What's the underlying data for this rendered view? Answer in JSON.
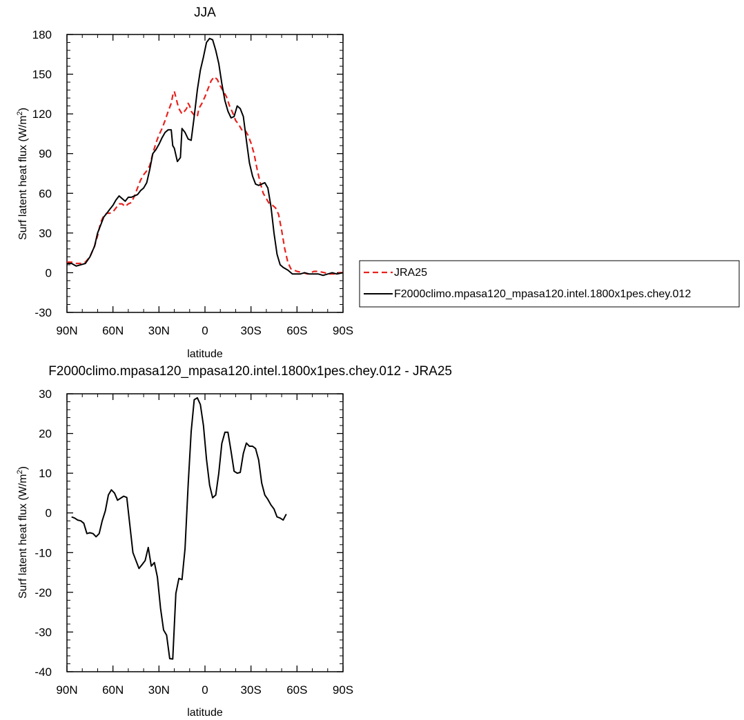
{
  "chart_data": [
    {
      "type": "line",
      "title": "JJA",
      "xlabel": "latitude",
      "ylabel_main": "Surf latent heat flux (W/m",
      "ylabel_sup": "2",
      "ylabel_tail": ")",
      "xlim": [
        -90,
        90
      ],
      "ylim": [
        -30,
        180
      ],
      "xticks": [
        {
          "value": -90,
          "label": "90N"
        },
        {
          "value": -60,
          "label": "60N"
        },
        {
          "value": -30,
          "label": "30N"
        },
        {
          "value": 0,
          "label": "0"
        },
        {
          "value": 30,
          "label": "30S"
        },
        {
          "value": 60,
          "label": "60S"
        },
        {
          "value": 90,
          "label": "90S"
        }
      ],
      "yticks": [
        -30,
        0,
        30,
        60,
        90,
        120,
        150,
        180
      ],
      "legend_position": "right",
      "series": [
        {
          "name": "JRA25",
          "color": "#e8221d",
          "dash": "dashed",
          "points": [
            [
              -90,
              8
            ],
            [
              -87,
              8
            ],
            [
              -84,
              7
            ],
            [
              -81,
              7
            ],
            [
              -78,
              8
            ],
            [
              -75,
              12
            ],
            [
              -72,
              20
            ],
            [
              -70,
              28
            ],
            [
              -68,
              38
            ],
            [
              -66,
              43
            ],
            [
              -64,
              45
            ],
            [
              -62,
              45
            ],
            [
              -60,
              46
            ],
            [
              -58,
              49
            ],
            [
              -56,
              52
            ],
            [
              -54,
              52
            ],
            [
              -52,
              50
            ],
            [
              -50,
              52
            ],
            [
              -48,
              53
            ],
            [
              -46,
              58
            ],
            [
              -44,
              64
            ],
            [
              -42,
              70
            ],
            [
              -40,
              74
            ],
            [
              -38,
              77
            ],
            [
              -36,
              81
            ],
            [
              -34,
              90
            ],
            [
              -32,
              98
            ],
            [
              -30,
              104
            ],
            [
              -28,
              109
            ],
            [
              -26,
              115
            ],
            [
              -24,
              122
            ],
            [
              -22,
              128
            ],
            [
              -21,
              134
            ],
            [
              -20,
              137
            ],
            [
              -18,
              128
            ],
            [
              -17,
              124
            ],
            [
              -15,
              120
            ],
            [
              -14,
              121
            ],
            [
              -12,
              124
            ],
            [
              -11,
              128
            ],
            [
              -10,
              126
            ],
            [
              -9,
              122
            ],
            [
              -7,
              119
            ],
            [
              -5,
              118
            ],
            [
              -4,
              124
            ],
            [
              -2,
              128
            ],
            [
              0,
              133
            ],
            [
              2,
              139
            ],
            [
              4,
              145
            ],
            [
              6,
              148
            ],
            [
              8,
              146
            ],
            [
              10,
              141
            ],
            [
              12,
              137
            ],
            [
              14,
              133
            ],
            [
              16,
              126
            ],
            [
              18,
              121
            ],
            [
              20,
              115
            ],
            [
              22,
              112
            ],
            [
              24,
              108
            ],
            [
              26,
              108
            ],
            [
              28,
              104
            ],
            [
              30,
              98
            ],
            [
              32,
              90
            ],
            [
              34,
              78
            ],
            [
              36,
              68
            ],
            [
              38,
              60
            ],
            [
              40,
              56
            ],
            [
              42,
              52
            ],
            [
              44,
              51
            ],
            [
              46,
              49
            ],
            [
              48,
              44
            ],
            [
              50,
              32
            ],
            [
              52,
              18
            ],
            [
              54,
              8
            ],
            [
              56,
              3
            ],
            [
              60,
              1
            ],
            [
              64,
              0
            ],
            [
              67,
              -1
            ],
            [
              71,
              1
            ],
            [
              74,
              1
            ],
            [
              78,
              0
            ],
            [
              81,
              -1
            ],
            [
              84,
              -1
            ],
            [
              87,
              0
            ],
            [
              90,
              0
            ]
          ]
        },
        {
          "name": "F2000climo.mpasa120_mpasa120.intel.1800x1pes.chey.012",
          "color": "#000000",
          "dash": "solid",
          "points": [
            [
              -90,
              7
            ],
            [
              -87,
              7
            ],
            [
              -84,
              5
            ],
            [
              -81,
              6
            ],
            [
              -78,
              7
            ],
            [
              -75,
              12
            ],
            [
              -72,
              20
            ],
            [
              -70,
              30
            ],
            [
              -68,
              36
            ],
            [
              -66,
              42
            ],
            [
              -64,
              45
            ],
            [
              -62,
              48
            ],
            [
              -60,
              51
            ],
            [
              -58,
              55
            ],
            [
              -56,
              58
            ],
            [
              -54,
              56
            ],
            [
              -52,
              54
            ],
            [
              -50,
              57
            ],
            [
              -48,
              57
            ],
            [
              -46,
              58
            ],
            [
              -44,
              59
            ],
            [
              -42,
              62
            ],
            [
              -40,
              64
            ],
            [
              -38,
              68
            ],
            [
              -36,
              78
            ],
            [
              -34,
              90
            ],
            [
              -32,
              93
            ],
            [
              -30,
              97
            ],
            [
              -28,
              102
            ],
            [
              -26,
              106
            ],
            [
              -24,
              108
            ],
            [
              -22,
              108
            ],
            [
              -21,
              96
            ],
            [
              -20,
              94
            ],
            [
              -18,
              84
            ],
            [
              -16,
              87
            ],
            [
              -15,
              109
            ],
            [
              -13,
              106
            ],
            [
              -11,
              101
            ],
            [
              -9,
              100
            ],
            [
              -7,
              118
            ],
            [
              -5,
              138
            ],
            [
              -3,
              153
            ],
            [
              -1,
              163
            ],
            [
              1,
              174
            ],
            [
              3,
              177
            ],
            [
              5,
              176
            ],
            [
              7,
              168
            ],
            [
              9,
              158
            ],
            [
              11,
              143
            ],
            [
              13,
              130
            ],
            [
              15,
              122
            ],
            [
              17,
              117
            ],
            [
              19,
              118
            ],
            [
              21,
              126
            ],
            [
              23,
              124
            ],
            [
              25,
              118
            ],
            [
              27,
              100
            ],
            [
              29,
              83
            ],
            [
              31,
              73
            ],
            [
              33,
              67
            ],
            [
              35,
              66
            ],
            [
              37,
              67
            ],
            [
              39,
              68
            ],
            [
              41,
              64
            ],
            [
              43,
              50
            ],
            [
              45,
              30
            ],
            [
              47,
              14
            ],
            [
              49,
              6
            ],
            [
              51,
              4
            ],
            [
              54,
              2
            ],
            [
              57,
              -1
            ],
            [
              60,
              -1
            ],
            [
              62,
              -1
            ],
            [
              65,
              0
            ],
            [
              68,
              -1
            ],
            [
              71,
              -1
            ],
            [
              74,
              -1
            ],
            [
              77,
              -2
            ],
            [
              80,
              -1
            ],
            [
              83,
              0
            ],
            [
              86,
              -1
            ],
            [
              90,
              0
            ]
          ]
        }
      ]
    },
    {
      "type": "line",
      "title": "F2000climo.mpasa120_mpasa120.intel.1800x1pes.chey.012 - JRA25",
      "xlabel": "latitude",
      "ylabel_main": "Surf latent heat flux (W/m",
      "ylabel_sup": "2",
      "ylabel_tail": ")",
      "xlim": [
        -90,
        90
      ],
      "ylim": [
        -40,
        30
      ],
      "xticks": [
        {
          "value": -90,
          "label": "90N"
        },
        {
          "value": -60,
          "label": "60N"
        },
        {
          "value": -30,
          "label": "30N"
        },
        {
          "value": 0,
          "label": "0"
        },
        {
          "value": 30,
          "label": "30S"
        },
        {
          "value": 60,
          "label": "60S"
        },
        {
          "value": 90,
          "label": "90S"
        }
      ],
      "yticks": [
        -40,
        -30,
        -20,
        -10,
        0,
        10,
        20,
        30
      ],
      "series": [
        {
          "color": "#000000",
          "dash": "solid",
          "points": [
            [
              -87,
              -1
            ],
            [
              -85,
              -1.3
            ],
            [
              -83,
              -1.8
            ],
            [
              -81,
              -2
            ],
            [
              -79,
              -2.6
            ],
            [
              -77,
              -5.2
            ],
            [
              -75,
              -5
            ],
            [
              -73,
              -5.2
            ],
            [
              -71,
              -6
            ],
            [
              -69,
              -5.2
            ],
            [
              -67,
              -2
            ],
            [
              -65,
              0.5
            ],
            [
              -63,
              4.5
            ],
            [
              -61,
              5.8
            ],
            [
              -59,
              5
            ],
            [
              -57,
              3.2
            ],
            [
              -55,
              3.7
            ],
            [
              -53,
              4.2
            ],
            [
              -51,
              3.9
            ],
            [
              -49,
              -3
            ],
            [
              -47,
              -10
            ],
            [
              -45,
              -12
            ],
            [
              -43,
              -14
            ],
            [
              -41,
              -13
            ],
            [
              -39,
              -12
            ],
            [
              -37,
              -8.7
            ],
            [
              -35,
              -13.4
            ],
            [
              -33,
              -12.5
            ],
            [
              -31,
              -16.2
            ],
            [
              -29,
              -24
            ],
            [
              -27,
              -29.5
            ],
            [
              -25,
              -30.8
            ],
            [
              -23,
              -36.7
            ],
            [
              -21,
              -36.8
            ],
            [
              -19,
              -20.3
            ],
            [
              -17,
              -16.5
            ],
            [
              -15,
              -16.8
            ],
            [
              -13,
              -9
            ],
            [
              -11,
              7
            ],
            [
              -9,
              20.5
            ],
            [
              -7,
              28.5
            ],
            [
              -5,
              29
            ],
            [
              -3,
              27.3
            ],
            [
              -1,
              22
            ],
            [
              1,
              13.5
            ],
            [
              3,
              7
            ],
            [
              5,
              3.8
            ],
            [
              7,
              4.5
            ],
            [
              9,
              10
            ],
            [
              11,
              17.5
            ],
            [
              13,
              20.3
            ],
            [
              15,
              20.3
            ],
            [
              17,
              15.5
            ],
            [
              19,
              10.5
            ],
            [
              21,
              10
            ],
            [
              23,
              10.2
            ],
            [
              25,
              15
            ],
            [
              27,
              17.6
            ],
            [
              29,
              16.8
            ],
            [
              31,
              16.8
            ],
            [
              33,
              16.2
            ],
            [
              35,
              13.3
            ],
            [
              37,
              7.5
            ],
            [
              39,
              4.5
            ],
            [
              41,
              3.4
            ],
            [
              43,
              2
            ],
            [
              45,
              1
            ],
            [
              47,
              -1
            ],
            [
              49,
              -1.3
            ],
            [
              51,
              -1.8
            ],
            [
              53,
              -0.3
            ]
          ]
        }
      ]
    }
  ]
}
